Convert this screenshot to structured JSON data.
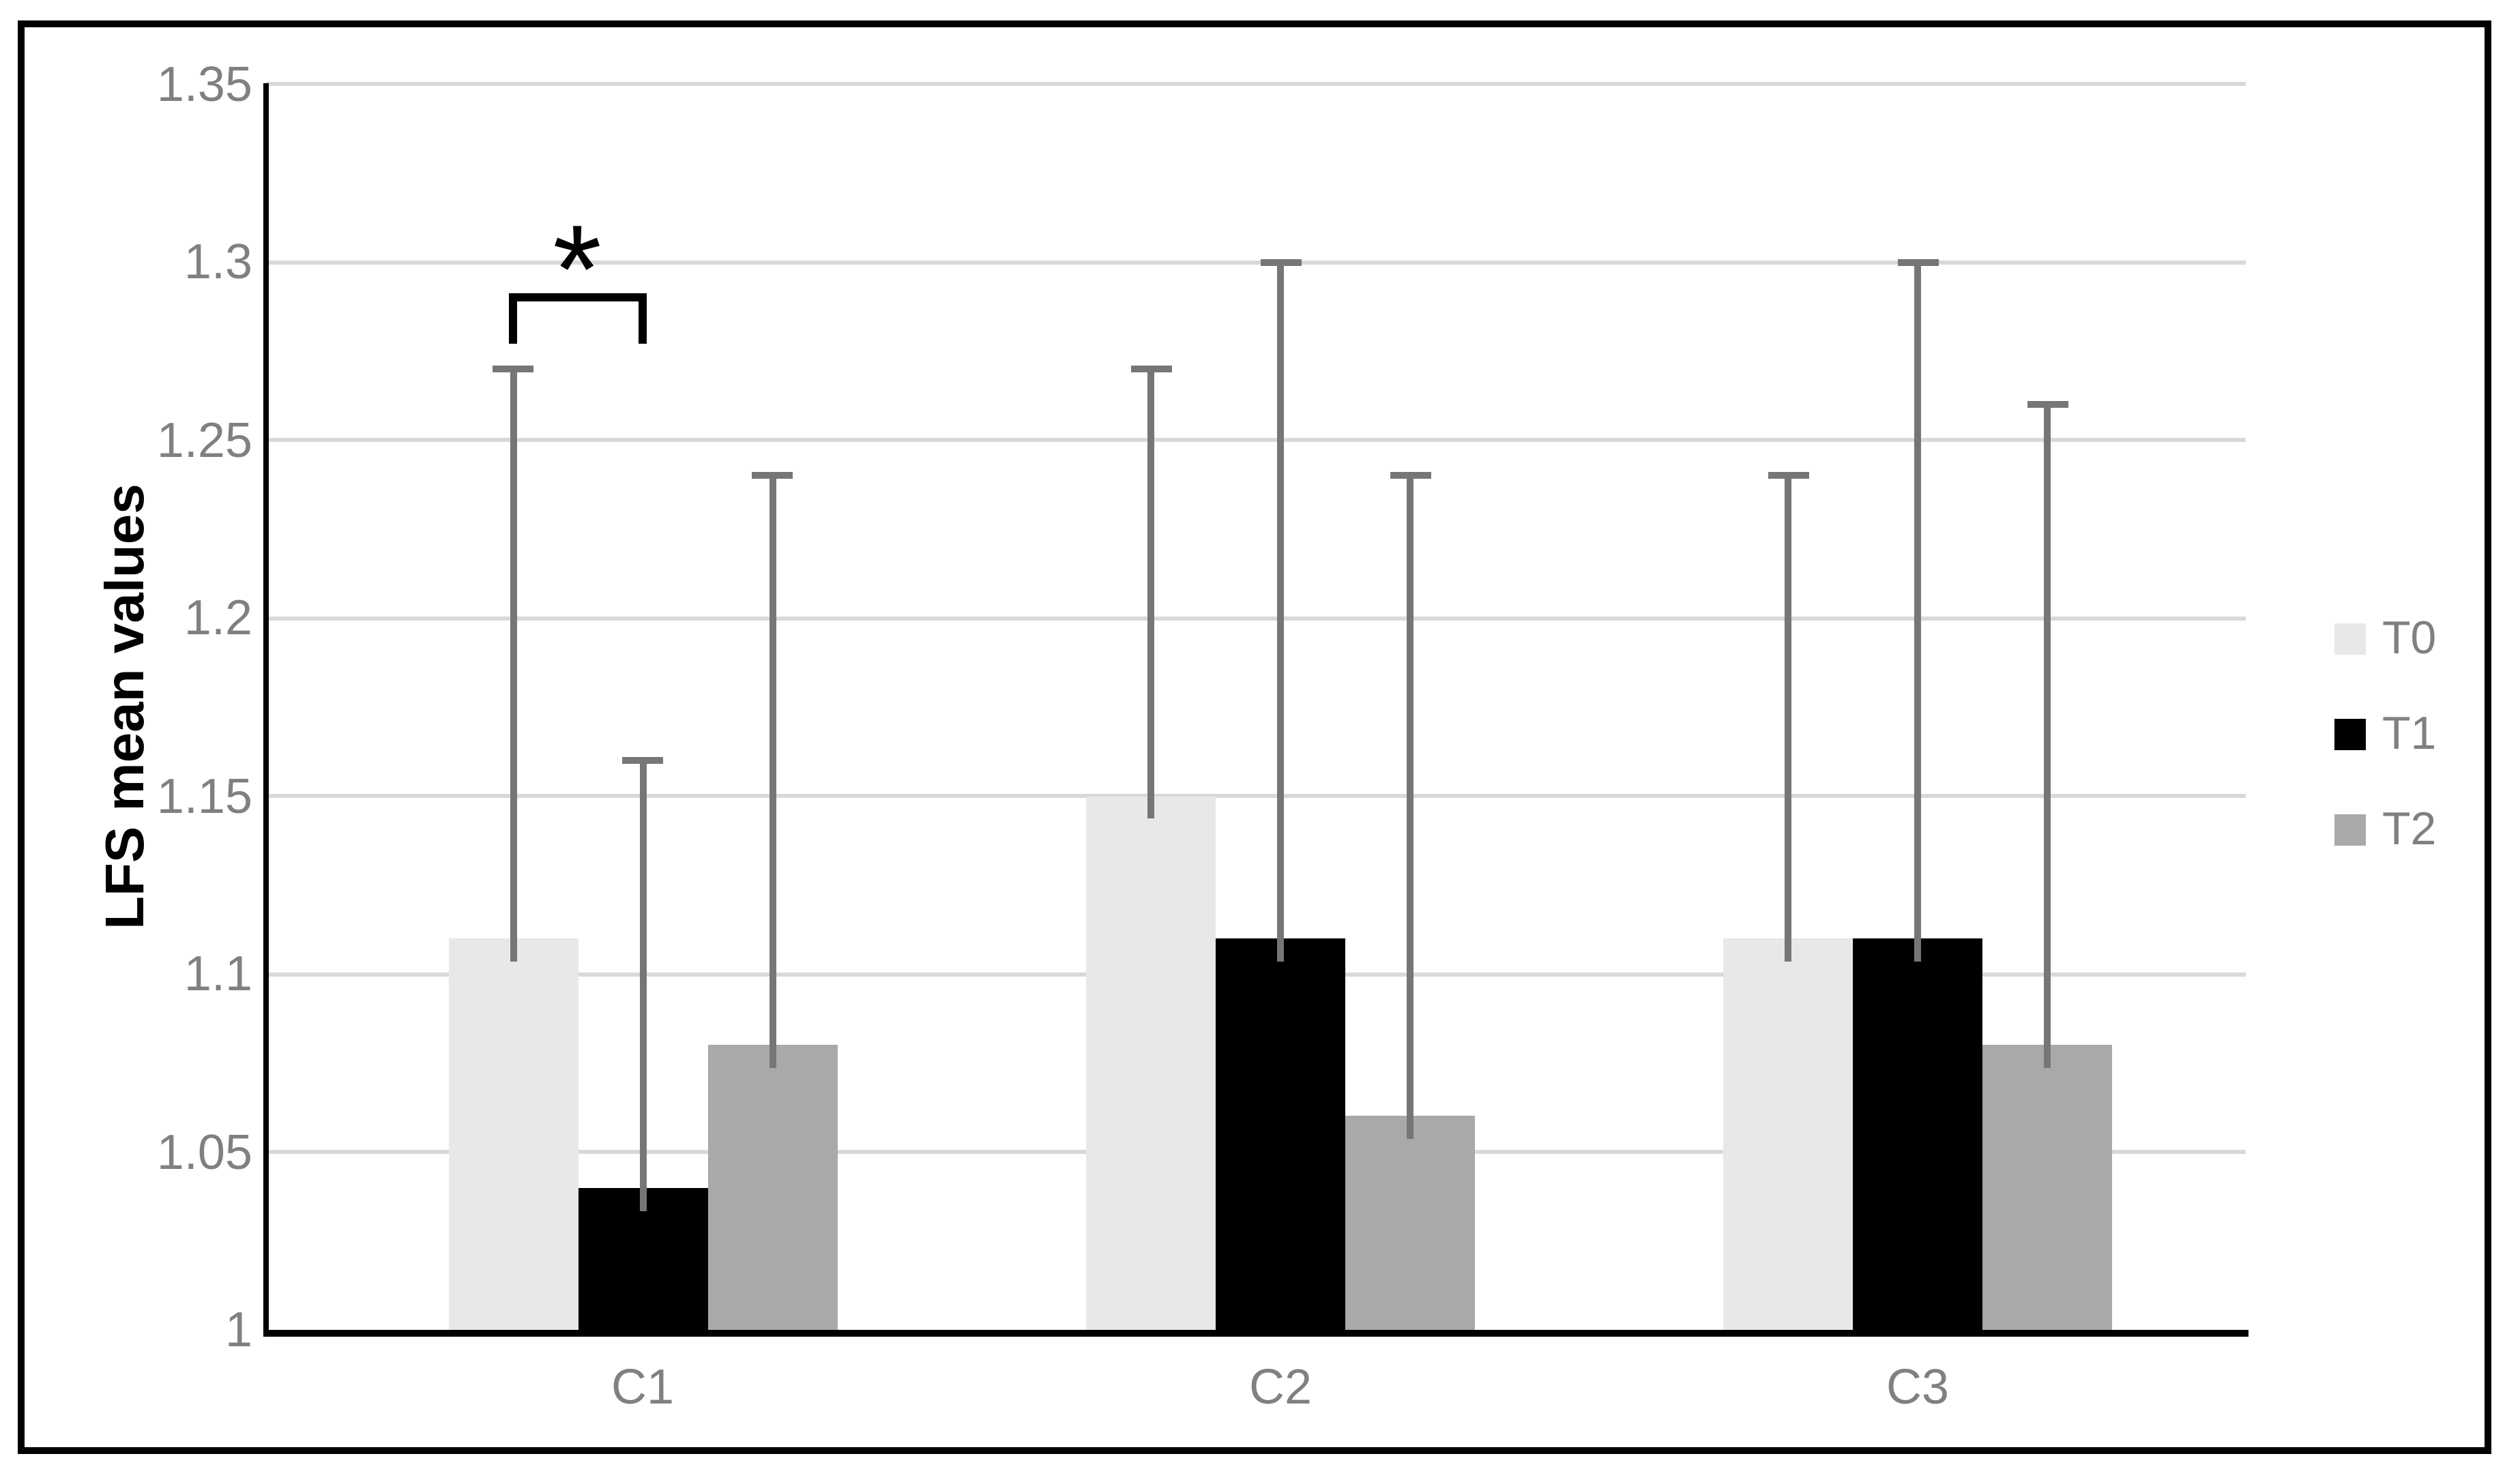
{
  "figure": {
    "ylabel": "LFS mean values",
    "xlabel": "",
    "title": ""
  },
  "chart_data": {
    "type": "bar",
    "categories": [
      "C1",
      "C2",
      "C3"
    ],
    "series": [
      {
        "name": "T0",
        "color": "#e8e8e8",
        "values": [
          1.11,
          1.15,
          1.11
        ],
        "error_plus": [
          0.16,
          0.12,
          0.13
        ]
      },
      {
        "name": "T1",
        "color": "#000000",
        "values": [
          1.04,
          1.11,
          1.11
        ],
        "error_plus": [
          0.12,
          0.19,
          0.19
        ]
      },
      {
        "name": "T2",
        "color": "#a9a9a9",
        "values": [
          1.08,
          1.06,
          1.08
        ],
        "error_plus": [
          0.16,
          0.18,
          0.18
        ]
      }
    ],
    "error_bar_tops": {
      "T0": [
        1.27,
        1.27,
        1.24
      ],
      "T1": [
        1.16,
        1.3,
        1.3
      ],
      "T2": [
        1.24,
        1.24,
        1.26
      ]
    },
    "title": "",
    "xlabel": "",
    "ylabel": "LFS mean values",
    "ylim": [
      1,
      1.35
    ],
    "yticks": [
      1,
      1.05,
      1.1,
      1.15,
      1.2,
      1.25,
      1.3,
      1.35
    ],
    "ytick_labels": [
      "1",
      "1.05",
      "1.1",
      "1.15",
      "1.2",
      "1.25",
      "1.3",
      "1.35"
    ],
    "grid": true,
    "legend_position": "right",
    "legend": [
      "T0",
      "T1",
      "T2"
    ],
    "annotation": {
      "type": "significance-bracket",
      "category": "C1",
      "between_series": [
        "T0",
        "T1"
      ],
      "text": "*"
    }
  },
  "colors": {
    "background": "#ffffff",
    "frame_border": "#000000",
    "axis": "#000000",
    "gridline": "#d9d9d9",
    "error_bar": "#767676",
    "tick_text": "#808080",
    "legend_text": "#808080",
    "series_T0": "#e8e8e8",
    "series_T1": "#000000",
    "series_T2": "#a9a9a9"
  }
}
